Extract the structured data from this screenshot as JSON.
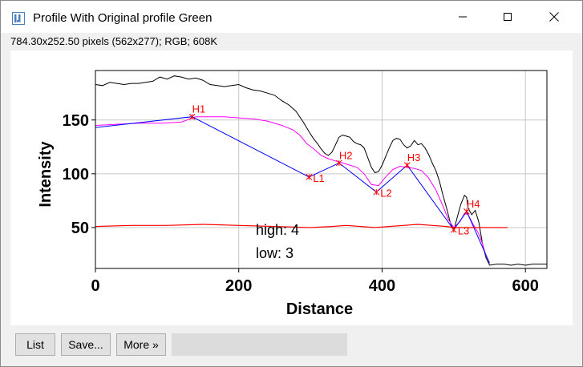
{
  "window": {
    "title": "Profile With Original profile Green",
    "info": "784.30x252.50 pixels (562x277); RGB; 608K"
  },
  "buttons": {
    "list": "List",
    "save": "Save...",
    "more": "More »"
  },
  "chart_data": {
    "type": "line",
    "xlabel": "Distance",
    "ylabel": "Intensity",
    "xlim": [
      0,
      630
    ],
    "ylim": [
      12,
      196
    ],
    "xticks": [
      0,
      200,
      400,
      600
    ],
    "yticks": [
      50,
      100,
      150
    ],
    "grid": true,
    "colors": {
      "profile": "#000000",
      "smoothed": "#ff00ff",
      "peaks": "#0000ff",
      "baseline": "#ff0000",
      "markers": "#ff0000"
    },
    "series": [
      {
        "role": "profile",
        "points": [
          [
            0,
            183
          ],
          [
            10,
            182
          ],
          [
            20,
            185
          ],
          [
            30,
            184
          ],
          [
            40,
            183
          ],
          [
            50,
            184
          ],
          [
            60,
            184
          ],
          [
            70,
            185
          ],
          [
            80,
            186
          ],
          [
            90,
            190
          ],
          [
            100,
            188
          ],
          [
            110,
            191
          ],
          [
            120,
            190
          ],
          [
            130,
            188
          ],
          [
            140,
            189
          ],
          [
            150,
            187
          ],
          [
            160,
            183
          ],
          [
            170,
            182
          ],
          [
            180,
            181
          ],
          [
            190,
            182
          ],
          [
            200,
            183
          ],
          [
            210,
            180
          ],
          [
            220,
            178
          ],
          [
            230,
            177
          ],
          [
            240,
            175
          ],
          [
            250,
            173
          ],
          [
            260,
            168
          ],
          [
            270,
            164
          ],
          [
            280,
            158
          ],
          [
            290,
            148
          ],
          [
            300,
            137
          ],
          [
            305,
            132
          ],
          [
            310,
            128
          ],
          [
            315,
            123
          ],
          [
            320,
            119
          ],
          [
            325,
            117
          ],
          [
            330,
            120
          ],
          [
            335,
            127
          ],
          [
            340,
            134
          ],
          [
            345,
            136
          ],
          [
            350,
            135
          ],
          [
            355,
            134
          ],
          [
            360,
            130
          ],
          [
            365,
            128
          ],
          [
            370,
            127
          ],
          [
            375,
            124
          ],
          [
            380,
            115
          ],
          [
            385,
            106
          ],
          [
            390,
            101
          ],
          [
            395,
            102
          ],
          [
            400,
            108
          ],
          [
            405,
            116
          ],
          [
            410,
            124
          ],
          [
            415,
            131
          ],
          [
            420,
            133
          ],
          [
            425,
            132
          ],
          [
            430,
            127
          ],
          [
            435,
            124
          ],
          [
            440,
            126
          ],
          [
            445,
            131
          ],
          [
            450,
            127
          ],
          [
            455,
            128
          ],
          [
            460,
            124
          ],
          [
            465,
            118
          ],
          [
            470,
            110
          ],
          [
            475,
            103
          ],
          [
            480,
            93
          ],
          [
            485,
            80
          ],
          [
            490,
            68
          ],
          [
            495,
            55
          ],
          [
            500,
            47
          ],
          [
            505,
            60
          ],
          [
            510,
            72
          ],
          [
            515,
            80
          ],
          [
            518,
            78
          ],
          [
            520,
            68
          ],
          [
            525,
            62
          ],
          [
            530,
            66
          ],
          [
            535,
            55
          ],
          [
            540,
            35
          ],
          [
            545,
            22
          ],
          [
            550,
            15
          ],
          [
            560,
            16
          ],
          [
            570,
            16
          ],
          [
            580,
            15
          ],
          [
            590,
            16
          ],
          [
            600,
            15
          ],
          [
            610,
            16
          ],
          [
            620,
            16
          ],
          [
            630,
            16
          ]
        ]
      },
      {
        "role": "smoothed",
        "points": [
          [
            0,
            145
          ],
          [
            30,
            146
          ],
          [
            60,
            147
          ],
          [
            90,
            147
          ],
          [
            120,
            148
          ],
          [
            140,
            153
          ],
          [
            160,
            153
          ],
          [
            180,
            153
          ],
          [
            200,
            152
          ],
          [
            220,
            151
          ],
          [
            240,
            149
          ],
          [
            260,
            145
          ],
          [
            275,
            141
          ],
          [
            285,
            136
          ],
          [
            295,
            128
          ],
          [
            305,
            123
          ],
          [
            315,
            117
          ],
          [
            325,
            114
          ],
          [
            335,
            112
          ],
          [
            345,
            110
          ],
          [
            355,
            108
          ],
          [
            365,
            106
          ],
          [
            375,
            100
          ],
          [
            385,
            90
          ],
          [
            395,
            89
          ],
          [
            405,
            97
          ],
          [
            415,
            104
          ],
          [
            425,
            107
          ],
          [
            435,
            106
          ],
          [
            445,
            105
          ],
          [
            455,
            103
          ],
          [
            465,
            96
          ],
          [
            475,
            85
          ],
          [
            485,
            70
          ],
          [
            492,
            58
          ],
          [
            500,
            50
          ],
          [
            508,
            55
          ],
          [
            515,
            63
          ],
          [
            520,
            62
          ],
          [
            528,
            52
          ],
          [
            535,
            44
          ],
          [
            540,
            35
          ],
          [
            545,
            24
          ],
          [
            550,
            17
          ]
        ]
      },
      {
        "role": "peaks",
        "points": [
          [
            0,
            143
          ],
          [
            135,
            153
          ],
          [
            298,
            97
          ],
          [
            340,
            110
          ],
          [
            392,
            83
          ],
          [
            435,
            108
          ],
          [
            500,
            48
          ],
          [
            518,
            65
          ],
          [
            550,
            17
          ]
        ]
      },
      {
        "role": "baseline",
        "points": [
          [
            0,
            51
          ],
          [
            50,
            52
          ],
          [
            100,
            52
          ],
          [
            150,
            53
          ],
          [
            200,
            52
          ],
          [
            250,
            51
          ],
          [
            300,
            50
          ],
          [
            330,
            51
          ],
          [
            350,
            52
          ],
          [
            370,
            51
          ],
          [
            390,
            50
          ],
          [
            410,
            51
          ],
          [
            430,
            52
          ],
          [
            450,
            53
          ],
          [
            470,
            52
          ],
          [
            490,
            51
          ],
          [
            500,
            50
          ],
          [
            520,
            50
          ],
          [
            540,
            50
          ],
          [
            560,
            50
          ],
          [
            575,
            50
          ]
        ]
      }
    ],
    "markers": [
      {
        "label": "H1",
        "x": 135,
        "y": 153
      },
      {
        "label": "L1",
        "x": 298,
        "y": 97
      },
      {
        "label": "H2",
        "x": 340,
        "y": 110
      },
      {
        "label": "L2",
        "x": 392,
        "y": 83
      },
      {
        "label": "H3",
        "x": 435,
        "y": 108
      },
      {
        "label": "L3",
        "x": 500,
        "y": 48
      },
      {
        "label": "H4",
        "x": 518,
        "y": 65
      }
    ],
    "annotations": [
      "high: 4",
      "low: 3"
    ]
  }
}
